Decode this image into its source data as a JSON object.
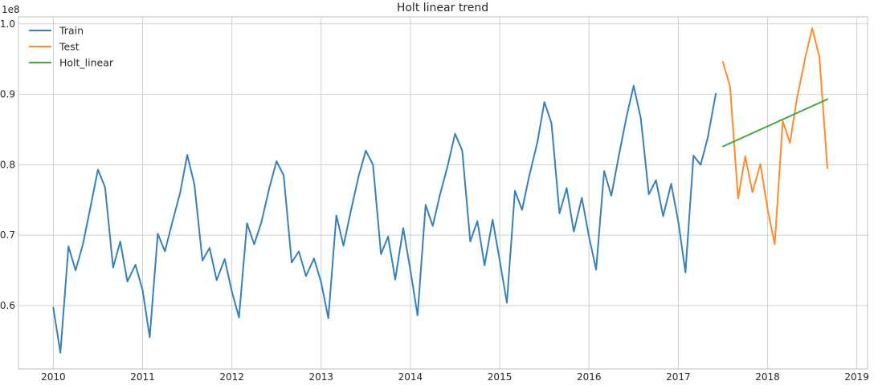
{
  "chart_data": {
    "type": "line",
    "title": "Holt linear trend",
    "xlabel": "",
    "ylabel": "",
    "y_offset_label": "1e8",
    "grid": true,
    "legend_position": "top-left",
    "xlim": [
      2009.61,
      2019.12
    ],
    "ylim": [
      0.51,
      1.01
    ],
    "x_ticks": [
      2010,
      2011,
      2012,
      2013,
      2014,
      2015,
      2016,
      2017,
      2018,
      2019
    ],
    "x_tick_labels": [
      "2010",
      "2011",
      "2012",
      "2013",
      "2014",
      "2015",
      "2016",
      "2017",
      "2018",
      "2019"
    ],
    "y_ticks": [
      0.6,
      0.7,
      0.8,
      0.9,
      1.0
    ],
    "y_tick_labels": [
      "0.6",
      "0.7",
      "0.8",
      "0.9",
      "1.0"
    ],
    "series": [
      {
        "name": "Train",
        "color": "#3680bb",
        "points": [
          [
            2010.0,
            0.597
          ],
          [
            2010.08,
            0.533
          ],
          [
            2010.17,
            0.684
          ],
          [
            2010.25,
            0.65
          ],
          [
            2010.33,
            0.686
          ],
          [
            2010.42,
            0.742
          ],
          [
            2010.5,
            0.793
          ],
          [
            2010.58,
            0.768
          ],
          [
            2010.67,
            0.654
          ],
          [
            2010.75,
            0.691
          ],
          [
            2010.83,
            0.634
          ],
          [
            2010.92,
            0.658
          ],
          [
            2011.0,
            0.622
          ],
          [
            2011.08,
            0.555
          ],
          [
            2011.17,
            0.702
          ],
          [
            2011.25,
            0.677
          ],
          [
            2011.33,
            0.717
          ],
          [
            2011.42,
            0.76
          ],
          [
            2011.5,
            0.814
          ],
          [
            2011.58,
            0.772
          ],
          [
            2011.67,
            0.664
          ],
          [
            2011.75,
            0.682
          ],
          [
            2011.83,
            0.636
          ],
          [
            2011.92,
            0.666
          ],
          [
            2012.0,
            0.62
          ],
          [
            2012.08,
            0.583
          ],
          [
            2012.17,
            0.717
          ],
          [
            2012.25,
            0.687
          ],
          [
            2012.33,
            0.718
          ],
          [
            2012.42,
            0.767
          ],
          [
            2012.5,
            0.805
          ],
          [
            2012.58,
            0.785
          ],
          [
            2012.67,
            0.661
          ],
          [
            2012.75,
            0.677
          ],
          [
            2012.83,
            0.642
          ],
          [
            2012.92,
            0.667
          ],
          [
            2013.0,
            0.633
          ],
          [
            2013.08,
            0.582
          ],
          [
            2013.17,
            0.728
          ],
          [
            2013.25,
            0.685
          ],
          [
            2013.33,
            0.733
          ],
          [
            2013.42,
            0.784
          ],
          [
            2013.5,
            0.82
          ],
          [
            2013.58,
            0.8
          ],
          [
            2013.67,
            0.673
          ],
          [
            2013.75,
            0.698
          ],
          [
            2013.83,
            0.637
          ],
          [
            2013.92,
            0.71
          ],
          [
            2014.0,
            0.65
          ],
          [
            2014.08,
            0.586
          ],
          [
            2014.17,
            0.743
          ],
          [
            2014.25,
            0.713
          ],
          [
            2014.33,
            0.757
          ],
          [
            2014.42,
            0.8
          ],
          [
            2014.5,
            0.844
          ],
          [
            2014.58,
            0.82
          ],
          [
            2014.67,
            0.691
          ],
          [
            2014.75,
            0.72
          ],
          [
            2014.83,
            0.657
          ],
          [
            2014.92,
            0.722
          ],
          [
            2015.0,
            0.664
          ],
          [
            2015.08,
            0.604
          ],
          [
            2015.17,
            0.763
          ],
          [
            2015.25,
            0.736
          ],
          [
            2015.33,
            0.784
          ],
          [
            2015.42,
            0.831
          ],
          [
            2015.5,
            0.889
          ],
          [
            2015.58,
            0.859
          ],
          [
            2015.67,
            0.731
          ],
          [
            2015.75,
            0.767
          ],
          [
            2015.83,
            0.705
          ],
          [
            2015.92,
            0.753
          ],
          [
            2016.0,
            0.698
          ],
          [
            2016.08,
            0.651
          ],
          [
            2016.17,
            0.791
          ],
          [
            2016.25,
            0.756
          ],
          [
            2016.33,
            0.81
          ],
          [
            2016.42,
            0.868
          ],
          [
            2016.5,
            0.912
          ],
          [
            2016.58,
            0.866
          ],
          [
            2016.67,
            0.758
          ],
          [
            2016.75,
            0.778
          ],
          [
            2016.83,
            0.727
          ],
          [
            2016.92,
            0.773
          ],
          [
            2017.0,
            0.719
          ],
          [
            2017.08,
            0.647
          ],
          [
            2017.17,
            0.813
          ],
          [
            2017.25,
            0.8
          ],
          [
            2017.33,
            0.838
          ],
          [
            2017.42,
            0.901
          ]
        ]
      },
      {
        "name": "Test",
        "color": "#ff8c2b",
        "points": [
          [
            2017.5,
            0.946
          ],
          [
            2017.58,
            0.911
          ],
          [
            2017.67,
            0.752
          ],
          [
            2017.75,
            0.812
          ],
          [
            2017.83,
            0.761
          ],
          [
            2017.92,
            0.801
          ],
          [
            2018.0,
            0.737
          ],
          [
            2018.08,
            0.687
          ],
          [
            2018.17,
            0.862
          ],
          [
            2018.25,
            0.831
          ],
          [
            2018.33,
            0.895
          ],
          [
            2018.42,
            0.951
          ],
          [
            2018.5,
            0.994
          ],
          [
            2018.58,
            0.953
          ],
          [
            2018.67,
            0.795
          ]
        ]
      },
      {
        "name": "Holt_linear",
        "color": "#3fa93a",
        "points": [
          [
            2017.5,
            0.826
          ],
          [
            2018.67,
            0.893
          ]
        ]
      }
    ]
  }
}
